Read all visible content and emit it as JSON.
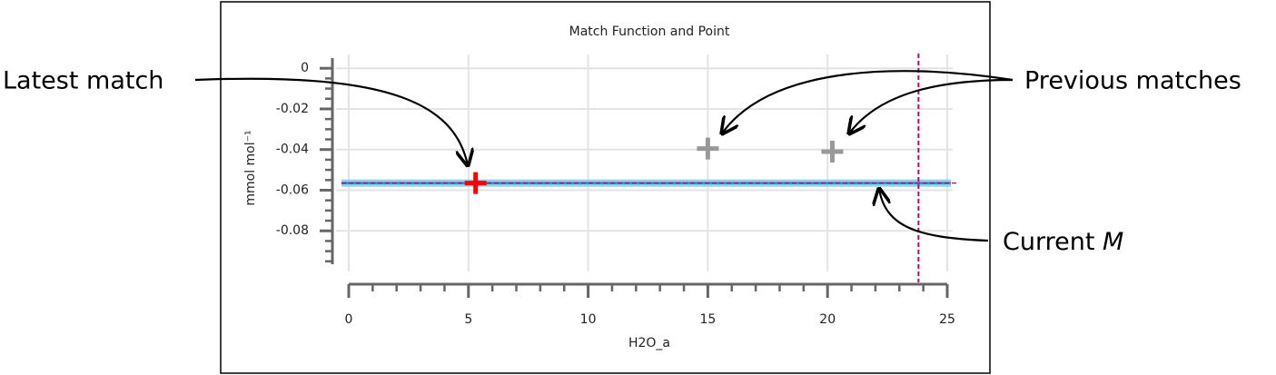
{
  "chart_data": {
    "type": "scatter",
    "title": "Match Function and Point",
    "x_label": "H2O_a",
    "y_label": "mmol mol⁻¹",
    "xlim": [
      0,
      25
    ],
    "ylim": [
      -0.1,
      0.005
    ],
    "xticks": [
      0,
      5,
      10,
      15,
      20,
      25
    ],
    "yticks": [
      0,
      -0.02,
      -0.04,
      -0.06,
      -0.08
    ],
    "xminorticks": [
      1,
      2,
      3,
      4,
      6,
      7,
      8,
      9,
      11,
      12,
      13,
      14,
      16,
      17,
      18,
      19,
      21,
      22,
      23,
      24
    ],
    "yminorticks": [
      -0.005,
      -0.01,
      -0.015,
      -0.025,
      -0.03,
      -0.035,
      -0.045,
      -0.05,
      -0.055,
      -0.065,
      -0.07,
      -0.075,
      -0.085,
      -0.09,
      -0.095
    ],
    "grid": true,
    "series": [
      {
        "name": "Latest match",
        "color": "#ff0000",
        "x": [
          5.3
        ],
        "values": [
          -0.0565
        ]
      },
      {
        "name": "Previous matches",
        "color": "#999999",
        "x": [
          15,
          20.2
        ],
        "values": [
          -0.0395,
          -0.041
        ]
      }
    ],
    "hline": {
      "label": "Current",
      "label_italic": "M",
      "value": -0.0565,
      "color": "#2a8fc7"
    },
    "vline": {
      "value": 23.8,
      "color": "#c0007a"
    }
  }
}
